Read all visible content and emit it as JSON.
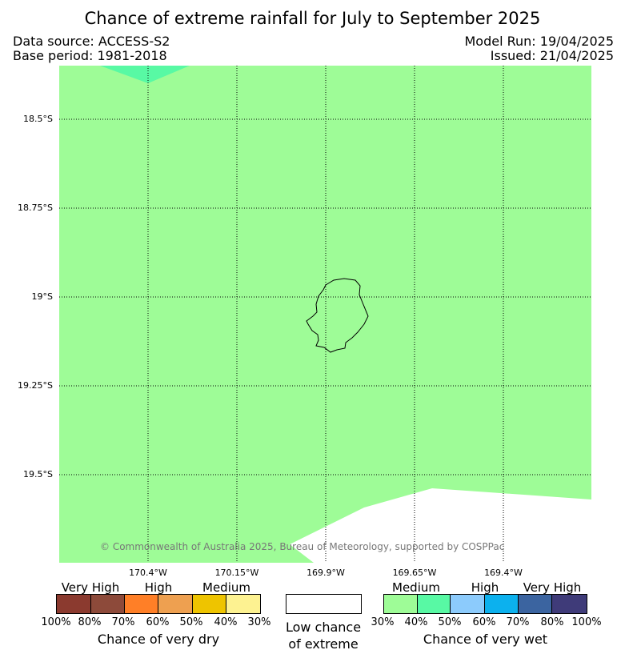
{
  "title": "Chance of extreme rainfall for July to September 2025",
  "header": {
    "data_source": "Data source: ACCESS-S2",
    "base_period": "Base period: 1981-2018",
    "model_run": "Model Run: 19/04/2025",
    "issued": "Issued: 21/04/2025"
  },
  "map": {
    "latitude_labels": [
      "18.5°S",
      "18.75°S",
      "19°S",
      "19.25°S",
      "19.5°S"
    ],
    "longitude_labels": [
      "170.4°W",
      "170.15°W",
      "169.9°W",
      "169.65°W",
      "169.4°W"
    ],
    "copyright": "© Commonwealth of Australia 2025, Bureau of Meteorology, supported by COSPPac",
    "colors": {
      "medium_wet": "#9efc97",
      "high_wet_40_50": "#58f9a4",
      "low_chance": "#ffffff"
    }
  },
  "legend": {
    "dry": {
      "levels": [
        "Very High",
        "High",
        "Medium"
      ],
      "percents": [
        "100%",
        "80%",
        "70%",
        "60%",
        "50%",
        "40%",
        "30%"
      ],
      "colors": [
        "#8b3a2f",
        "#8d4a3a",
        "#ff7f27",
        "#eea050",
        "#eec400",
        "#fdf291"
      ],
      "caption": "Chance of very dry"
    },
    "low": {
      "caption_line1": "Low chance",
      "caption_line2": "of extreme"
    },
    "wet": {
      "levels": [
        "Medium",
        "High",
        "Very High"
      ],
      "percents": [
        "30%",
        "40%",
        "50%",
        "60%",
        "70%",
        "80%",
        "100%"
      ],
      "colors": [
        "#9efc97",
        "#58f9a4",
        "#8ccbfc",
        "#0cb1ee",
        "#3b64a0",
        "#3f3b79"
      ],
      "caption": "Chance of very wet"
    }
  }
}
